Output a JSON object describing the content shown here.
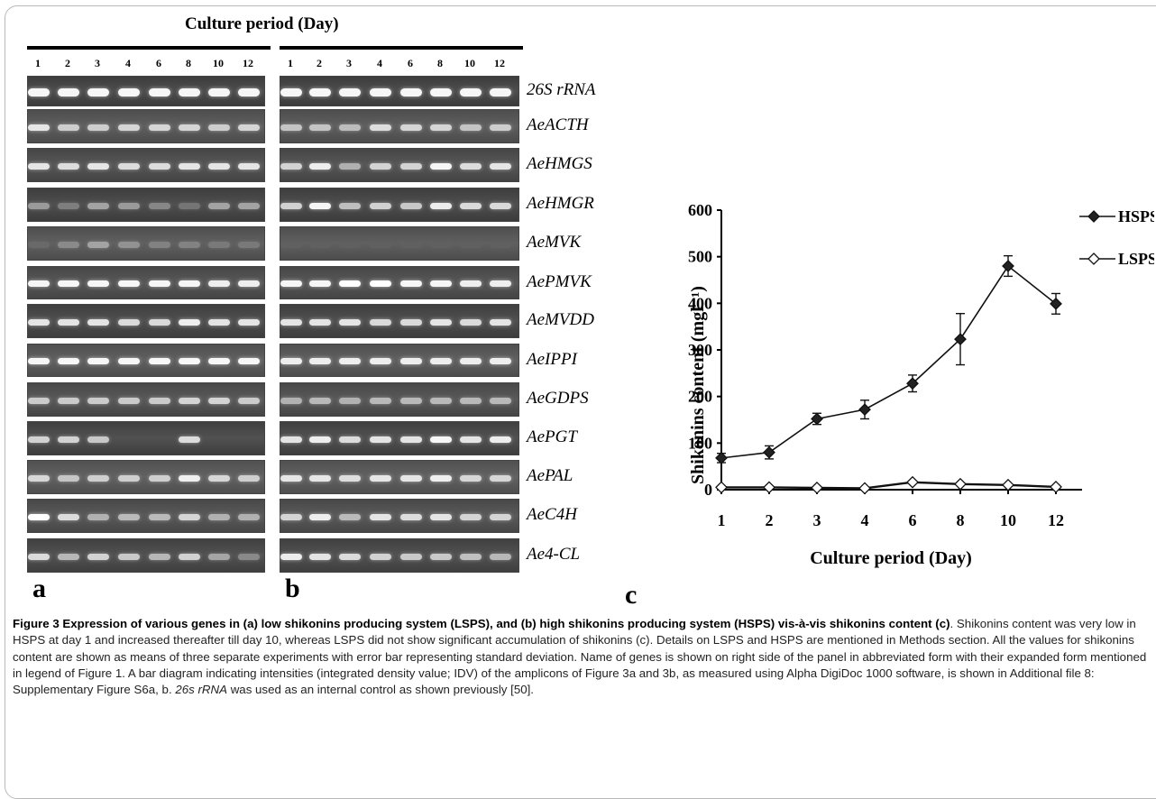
{
  "figure": {
    "culture_header": "Culture period (Day)",
    "lane_labels": [
      "1",
      "2",
      "3",
      "4",
      "6",
      "8",
      "10",
      "12"
    ],
    "genes": [
      "26S rRNA",
      "AeACTH",
      "AeHMGS",
      "AeHMGR",
      "AeMVK",
      "AePMVK",
      "AeMVDD",
      "AeIPPI",
      "AeGDPS",
      "AePGT",
      "AePAL",
      "AeC4H",
      "Ae4-CL"
    ],
    "panel_labels": {
      "a": "a",
      "b": "b",
      "c": "c"
    },
    "gel_a_intensity": [
      [
        0.95,
        0.95,
        0.95,
        0.95,
        0.95,
        0.95,
        0.95,
        0.95
      ],
      [
        0.85,
        0.7,
        0.7,
        0.75,
        0.75,
        0.75,
        0.7,
        0.75
      ],
      [
        0.85,
        0.8,
        0.85,
        0.8,
        0.8,
        0.85,
        0.85,
        0.85
      ],
      [
        0.45,
        0.3,
        0.5,
        0.45,
        0.35,
        0.25,
        0.5,
        0.5
      ],
      [
        0.1,
        0.3,
        0.45,
        0.35,
        0.25,
        0.25,
        0.2,
        0.2
      ],
      [
        0.95,
        0.95,
        0.95,
        0.95,
        0.95,
        0.95,
        0.9,
        0.9
      ],
      [
        0.85,
        0.85,
        0.85,
        0.8,
        0.8,
        0.9,
        0.85,
        0.85
      ],
      [
        0.95,
        0.95,
        0.95,
        0.95,
        0.95,
        0.95,
        0.95,
        0.95
      ],
      [
        0.7,
        0.7,
        0.7,
        0.7,
        0.7,
        0.75,
        0.75,
        0.7
      ],
      [
        0.75,
        0.75,
        0.7,
        0.0,
        0.0,
        0.8,
        0.0,
        0.0
      ],
      [
        0.75,
        0.65,
        0.7,
        0.7,
        0.7,
        0.9,
        0.75,
        0.7
      ],
      [
        1.0,
        0.8,
        0.55,
        0.6,
        0.6,
        0.75,
        0.55,
        0.55
      ],
      [
        0.8,
        0.6,
        0.75,
        0.7,
        0.6,
        0.75,
        0.5,
        0.35
      ]
    ],
    "gel_b_intensity": [
      [
        0.95,
        0.95,
        0.95,
        0.95,
        0.95,
        0.95,
        0.95,
        0.95
      ],
      [
        0.65,
        0.65,
        0.6,
        0.8,
        0.75,
        0.75,
        0.65,
        0.7
      ],
      [
        0.75,
        0.9,
        0.55,
        0.75,
        0.75,
        0.95,
        0.8,
        0.85
      ],
      [
        0.75,
        0.95,
        0.65,
        0.75,
        0.7,
        0.9,
        0.8,
        0.8
      ],
      [
        0.05,
        0.05,
        0.05,
        0.05,
        0.05,
        0.05,
        0.05,
        0.05
      ],
      [
        0.95,
        0.95,
        1.0,
        1.0,
        0.95,
        0.95,
        0.9,
        0.9
      ],
      [
        0.85,
        0.85,
        0.85,
        0.8,
        0.8,
        0.85,
        0.8,
        0.85
      ],
      [
        0.9,
        0.9,
        0.9,
        0.9,
        0.9,
        0.9,
        0.9,
        0.9
      ],
      [
        0.55,
        0.6,
        0.55,
        0.6,
        0.6,
        0.6,
        0.6,
        0.6
      ],
      [
        0.85,
        0.9,
        0.8,
        0.85,
        0.85,
        0.95,
        0.85,
        0.9
      ],
      [
        0.85,
        0.85,
        0.8,
        0.85,
        0.85,
        0.9,
        0.75,
        0.75
      ],
      [
        0.75,
        0.9,
        0.6,
        0.85,
        0.8,
        0.85,
        0.75,
        0.75
      ],
      [
        0.9,
        0.85,
        0.8,
        0.75,
        0.7,
        0.7,
        0.65,
        0.6
      ]
    ]
  },
  "chart_data": {
    "type": "line",
    "title": "",
    "xlabel": "Culture period (Day)",
    "ylabel": "Shikonins content (mgl⁻¹)",
    "categories": [
      "1",
      "2",
      "3",
      "4",
      "6",
      "8",
      "10",
      "12"
    ],
    "ylim": [
      0,
      600
    ],
    "yticks": [
      "0",
      "100",
      "200",
      "300",
      "400",
      "500",
      "600"
    ],
    "legend_position": "top-right",
    "series": [
      {
        "name": "HSPS",
        "marker": "filled-diamond",
        "values": [
          68,
          80,
          152,
          172,
          228,
          323,
          480,
          399
        ],
        "errors": [
          10,
          14,
          12,
          20,
          18,
          55,
          22,
          22
        ]
      },
      {
        "name": "LSPS",
        "marker": "open-diamond",
        "values": [
          5,
          5,
          4,
          3,
          16,
          12,
          10,
          6
        ],
        "errors": [
          0,
          0,
          0,
          0,
          0,
          0,
          0,
          0
        ]
      }
    ]
  },
  "caption": {
    "title": "Figure 3 Expression of various genes in (a) low shikonins producing system (LSPS), and (b) high shikonins producing system (HSPS) vis-à-vis shikonins content (c)",
    "body_1": ". Shikonins content was very low in HSPS at day 1 and increased thereafter till day 10, whereas LSPS did not show significant accumulation of shikonins (c). Details on LSPS and HSPS are mentioned in Methods section. All the values for shikonins content are shown as means of three separate experiments with error bar representing standard deviation. Name of genes is shown on right side of the panel in abbreviated form with their expanded form mentioned in legend of Figure 1. A bar diagram indicating intensities (integrated density value; IDV) of the amplicons of Figure 3a and 3b, as measured using Alpha DigiDoc 1000 software, is shown in Additional file 8: Supplementary Figure S6a, b. ",
    "italic_term": "26s rRNA",
    "body_2": " was used as an internal control as shown previously [50]."
  }
}
